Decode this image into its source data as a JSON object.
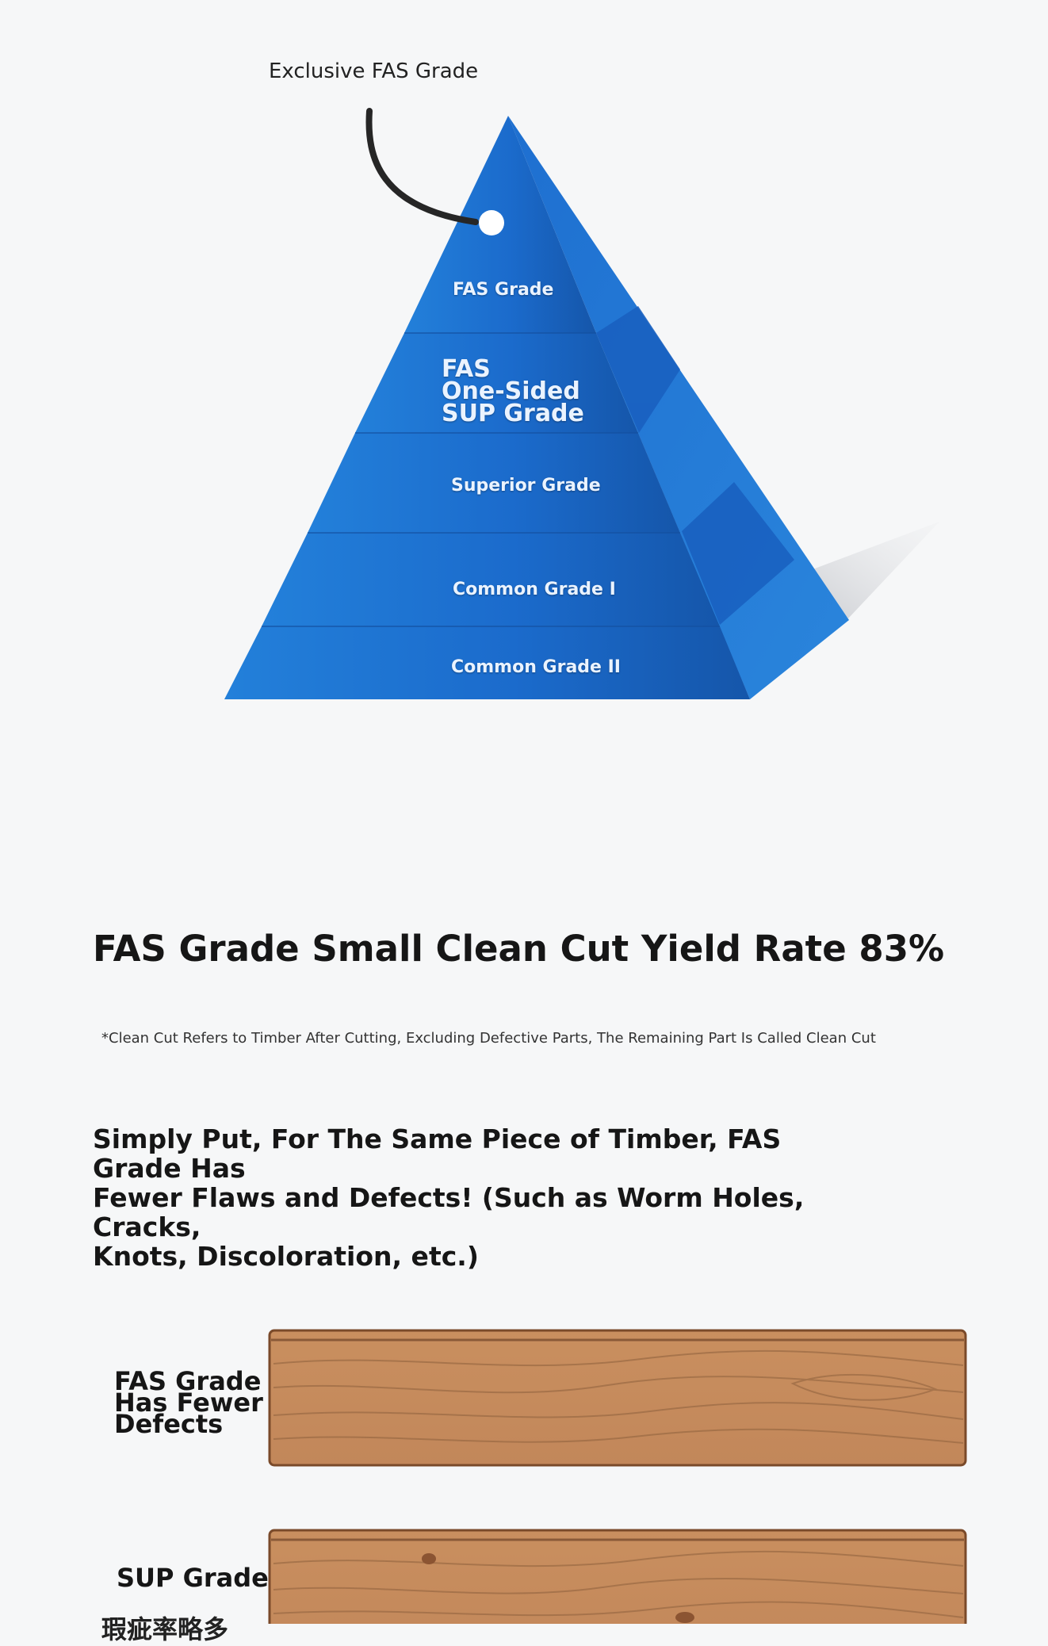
{
  "pyramid": {
    "tag_label": "Exclusive FAS Grade",
    "tiers": [
      "FAS Grade",
      "FAS\nOne-Sided\nSUP Grade",
      "Superior Grade",
      "Common Grade I",
      "Common Grade II"
    ],
    "colors": {
      "front": "#1d6fd0",
      "side": "#1a5fb8",
      "tag_cord": "#262626"
    }
  },
  "headline": "FAS Grade Small Clean Cut Yield Rate 83%",
  "footnote": "*Clean Cut Refers to Timber After Cutting, Excluding Defective Parts, The Remaining Part Is Called Clean Cut",
  "lead": "Simply Put, For The Same Piece of Timber, FAS Grade Has\nFewer Flaws and Defects! (Such as Worm Holes, Cracks,\nKnots, Discoloration, etc.)",
  "boards": [
    {
      "label": "FAS Grade\nHas Fewer\nDefects"
    },
    {
      "label": "SUP Grade",
      "sublabel": "瑕疵率略多"
    }
  ],
  "colors": {
    "wood": "#c68a5a",
    "wood_edge": "#7a4a2a",
    "background": "#f6f7f8"
  }
}
